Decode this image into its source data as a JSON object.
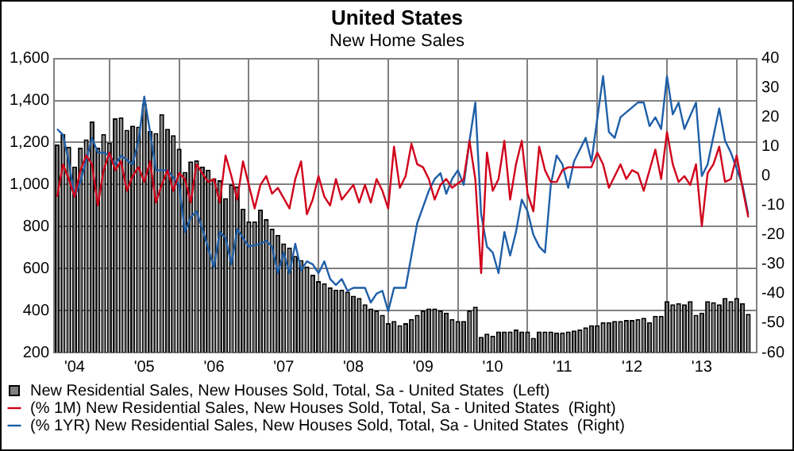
{
  "chart_data": {
    "type": "bar",
    "title": "United States",
    "subtitle": "New Home Sales",
    "x": [
      "2004-04",
      "2004-05",
      "2004-06",
      "2004-07",
      "2004-08",
      "2004-09",
      "2004-10",
      "2004-11",
      "2004-12",
      "2005-01",
      "2005-02",
      "2005-03",
      "2005-04",
      "2005-05",
      "2005-06",
      "2005-07",
      "2005-08",
      "2005-09",
      "2005-10",
      "2005-11",
      "2005-12",
      "2006-01",
      "2006-02",
      "2006-03",
      "2006-04",
      "2006-05",
      "2006-06",
      "2006-07",
      "2006-08",
      "2006-09",
      "2006-10",
      "2006-11",
      "2006-12",
      "2007-01",
      "2007-02",
      "2007-03",
      "2007-04",
      "2007-05",
      "2007-06",
      "2007-07",
      "2007-08",
      "2007-09",
      "2007-10",
      "2007-11",
      "2007-12",
      "2008-01",
      "2008-02",
      "2008-03",
      "2008-04",
      "2008-05",
      "2008-06",
      "2008-07",
      "2008-08",
      "2008-09",
      "2008-10",
      "2008-11",
      "2008-12",
      "2009-01",
      "2009-02",
      "2009-03",
      "2009-04",
      "2009-05",
      "2009-06",
      "2009-07",
      "2009-08",
      "2009-09",
      "2009-10",
      "2009-11",
      "2009-12",
      "2010-01",
      "2010-02",
      "2010-03",
      "2010-04",
      "2010-05",
      "2010-06",
      "2010-07",
      "2010-08",
      "2010-09",
      "2010-10",
      "2010-11",
      "2010-12",
      "2011-01",
      "2011-02",
      "2011-03",
      "2011-04",
      "2011-05",
      "2011-06",
      "2011-07",
      "2011-08",
      "2011-09",
      "2011-10",
      "2011-11",
      "2011-12",
      "2012-01",
      "2012-02",
      "2012-03",
      "2012-04",
      "2012-05",
      "2012-06",
      "2012-07",
      "2012-08",
      "2012-09",
      "2012-10",
      "2012-11",
      "2012-12",
      "2013-01",
      "2013-02",
      "2013-03",
      "2013-04",
      "2013-05",
      "2013-06",
      "2013-07",
      "2013-08",
      "2013-09",
      "2013-10",
      "2013-11",
      "2013-12",
      "2014-01",
      "2014-02",
      "2014-03"
    ],
    "series": [
      {
        "name": "New Residential Sales, New Houses Sold, Total, Sa - United States  (Left)",
        "color": "#808080",
        "values": [
          1190,
          1240,
          1180,
          1085,
          1175,
          1215,
          1300,
          1175,
          1240,
          1200,
          1315,
          1320,
          1260,
          1280,
          1275,
          1385,
          1255,
          1245,
          1335,
          1265,
          1235,
          1170,
          1060,
          1110,
          1115,
          1085,
          1070,
          1030,
          1020,
          935,
          1000,
          990,
          885,
          825,
          825,
          880,
          835,
          790,
          760,
          720,
          700,
          660,
          640,
          610,
          570,
          540,
          530,
          510,
          500,
          500,
          490,
          470,
          460,
          430,
          410,
          400,
          380,
          340,
          350,
          330,
          340,
          360,
          380,
          400,
          410,
          410,
          400,
          390,
          360,
          350,
          350,
          400,
          418,
          275,
          290,
          280,
          300,
          300,
          300,
          310,
          300,
          300,
          270,
          300,
          300,
          300,
          295,
          295,
          300,
          305,
          310,
          320,
          330,
          330,
          345,
          345,
          350,
          350,
          355,
          355,
          360,
          365,
          345,
          375,
          375,
          445,
          430,
          435,
          430,
          445,
          380,
          390,
          445,
          440,
          430,
          460,
          445,
          460,
          435,
          384
        ]
      },
      {
        "name": "(% 1M) New Residential Sales, New Houses Sold, Total, Sa - United States  (Right)",
        "type": "line",
        "axis": "y2",
        "color": "#d0021b",
        "x": [
          "2004-04",
          "2004-05",
          "2004-06",
          "2004-07",
          "2004-08",
          "2004-09",
          "2004-10",
          "2004-11",
          "2004-12",
          "2005-01",
          "2005-02",
          "2005-03",
          "2005-04",
          "2005-05",
          "2005-06",
          "2005-07",
          "2005-08",
          "2005-09",
          "2005-10",
          "2005-11",
          "2005-12",
          "2006-01",
          "2006-02",
          "2006-03",
          "2006-04",
          "2006-05",
          "2006-06",
          "2006-07",
          "2006-08",
          "2006-09",
          "2006-10",
          "2006-11",
          "2006-12",
          "2007-01",
          "2007-02",
          "2007-03",
          "2007-04",
          "2007-05",
          "2007-06",
          "2007-08",
          "2007-09",
          "2007-10",
          "2007-11",
          "2007-12",
          "2008-01",
          "2008-02",
          "2008-03",
          "2008-04",
          "2008-05",
          "2008-07",
          "2008-08",
          "2008-09",
          "2008-10",
          "2008-11",
          "2008-12",
          "2009-01",
          "2009-02",
          "2009-03",
          "2009-04",
          "2009-05",
          "2009-06",
          "2009-07",
          "2009-08",
          "2009-09",
          "2009-10",
          "2009-11",
          "2009-12",
          "2010-02",
          "2010-03",
          "2010-04",
          "2010-05",
          "2010-06",
          "2010-07",
          "2010-08",
          "2010-09",
          "2010-10",
          "2010-11",
          "2010-12",
          "2011-01",
          "2011-02",
          "2011-03",
          "2011-04",
          "2011-05",
          "2011-06",
          "2011-07",
          "2011-08",
          "2011-10",
          "2011-12",
          "2012-01",
          "2012-02",
          "2012-03",
          "2012-05",
          "2012-06",
          "2012-07",
          "2012-08",
          "2012-09",
          "2012-11",
          "2012-12",
          "2013-01",
          "2013-02",
          "2013-03",
          "2013-04",
          "2013-05",
          "2013-06",
          "2013-07",
          "2013-08",
          "2013-09",
          "2013-10",
          "2013-11",
          "2013-12",
          "2014-01",
          "2014-02",
          "2014-03"
        ],
        "values": [
          -7,
          4,
          -1,
          -7,
          2,
          7,
          4,
          -10,
          2,
          8,
          2,
          5,
          -5,
          0,
          3,
          -2,
          5,
          -9,
          -3,
          2,
          -5,
          1,
          -1,
          -9,
          4,
          1,
          -2,
          -1,
          -9,
          7,
          0,
          -8,
          5,
          -3,
          -11,
          -3,
          0,
          -6,
          -4,
          -11,
          -1,
          5,
          -13,
          -8,
          0,
          -7,
          -10,
          -1,
          -8,
          -3,
          -9,
          -3,
          -9,
          -1,
          -5,
          -11,
          10,
          -4,
          0,
          11,
          4,
          3,
          -1,
          -8,
          -3,
          -1,
          -4,
          -1,
          12,
          -1,
          -33,
          8,
          -5,
          -1,
          12,
          -8,
          4,
          12,
          -6,
          -12,
          10,
          2,
          -2,
          -2,
          2,
          3,
          3,
          3,
          8,
          4,
          -4,
          4,
          -1,
          2,
          1,
          -5,
          9,
          -1,
          15,
          4,
          -2,
          0,
          -3,
          4,
          -17,
          1,
          4,
          10,
          -2,
          -1,
          7,
          -4,
          -14
        ]
      },
      {
        "name": "(% 1YR) New Residential Sales, New Houses Sold, Total, Sa - United States  (Right)",
        "type": "line",
        "axis": "y2",
        "color": "#1f5fa8",
        "x": [
          "2004-04",
          "2004-05",
          "2004-06",
          "2004-07",
          "2004-08",
          "2004-10",
          "2004-11",
          "2004-12",
          "2005-01",
          "2005-02",
          "2005-03",
          "2005-05",
          "2005-06",
          "2005-07",
          "2005-08",
          "2005-09",
          "2005-11",
          "2006-01",
          "2006-02",
          "2006-03",
          "2006-04",
          "2006-05",
          "2006-07",
          "2006-08",
          "2006-09",
          "2006-10",
          "2006-11",
          "2007-01",
          "2007-03",
          "2007-04",
          "2007-05",
          "2007-06",
          "2007-07",
          "2007-08",
          "2007-09",
          "2007-10",
          "2007-11",
          "2007-12",
          "2008-01",
          "2008-02",
          "2008-03",
          "2008-04",
          "2008-05",
          "2008-06",
          "2008-07",
          "2008-08",
          "2008-09",
          "2008-10",
          "2008-11",
          "2008-12",
          "2009-01",
          "2009-02",
          "2009-04",
          "2009-05",
          "2009-06",
          "2009-08",
          "2009-09",
          "2009-10",
          "2009-11",
          "2009-12",
          "2010-01",
          "2010-02",
          "2010-03",
          "2010-04",
          "2010-05",
          "2010-06",
          "2010-07",
          "2010-08",
          "2010-09",
          "2010-10",
          "2010-11",
          "2010-12",
          "2011-01",
          "2011-02",
          "2011-03",
          "2011-04",
          "2011-05",
          "2011-06",
          "2011-07",
          "2011-08",
          "2011-09",
          "2011-11",
          "2011-12",
          "2012-02",
          "2012-03",
          "2012-04",
          "2012-05",
          "2012-08",
          "2012-09",
          "2012-10",
          "2012-11",
          "2012-12",
          "2013-01",
          "2013-02",
          "2013-03",
          "2013-04",
          "2013-06",
          "2013-07",
          "2013-08",
          "2013-10",
          "2013-11",
          "2013-12",
          "2014-02",
          "2014-03"
        ],
        "values": [
          16,
          14,
          5,
          -7,
          -2,
          13,
          8,
          8,
          7,
          4,
          7,
          4,
          12,
          27,
          15,
          2,
          2,
          -3,
          -19,
          -14,
          -12,
          -18,
          -31,
          -19,
          -21,
          -30,
          -18,
          -24,
          -23,
          -22,
          -24,
          -33,
          -26,
          -33,
          -23,
          -32,
          -29,
          -30,
          -33,
          -29,
          -35,
          -37,
          -35,
          -39,
          -38,
          -38,
          -38,
          -43,
          -40,
          -39,
          -46,
          -38,
          -38,
          -27,
          -16,
          -5,
          -1,
          1,
          -6,
          -1,
          2,
          -3,
          12,
          25,
          -13,
          -24,
          -26,
          -33,
          -19,
          -27,
          -19,
          -8,
          -12,
          -20,
          -24,
          -26,
          -3,
          7,
          4,
          -4,
          5,
          13,
          5,
          34,
          15,
          13,
          20,
          25,
          25,
          17,
          20,
          16,
          34,
          21,
          25,
          16,
          25,
          0,
          4,
          23,
          12,
          8,
          -3,
          -13
        ]
      }
    ],
    "xlim": [
      "2004-03-15",
      "2014-04-15"
    ],
    "xticks": [
      {
        "value": "2004-07",
        "label": "'04"
      },
      {
        "value": "2005-01",
        "label": null
      },
      {
        "value": "2005-07",
        "label": "'05"
      },
      {
        "value": "2006-01",
        "label": null
      },
      {
        "value": "2006-07",
        "label": "'06"
      },
      {
        "value": "2007-01",
        "label": null
      },
      {
        "value": "2007-07",
        "label": "'07"
      },
      {
        "value": "2008-01",
        "label": null
      },
      {
        "value": "2008-07",
        "label": "'08"
      },
      {
        "value": "2009-01",
        "label": null
      },
      {
        "value": "2009-07",
        "label": "'09"
      },
      {
        "value": "2010-01",
        "label": null
      },
      {
        "value": "2010-07",
        "label": "'10"
      },
      {
        "value": "2011-01",
        "label": null
      },
      {
        "value": "2011-07",
        "label": "'11"
      },
      {
        "value": "2012-01",
        "label": null
      },
      {
        "value": "2012-07",
        "label": "'12"
      },
      {
        "value": "2013-01",
        "label": null
      },
      {
        "value": "2013-07",
        "label": "'13"
      },
      {
        "value": "2014-01",
        "label": null
      }
    ],
    "ylim": [
      200,
      1600
    ],
    "yticks": [
      200,
      400,
      600,
      800,
      {
        "value": 1000,
        "label": "1,000"
      },
      {
        "value": 1200,
        "label": "1,200"
      },
      {
        "value": 1400,
        "label": "1,400"
      },
      {
        "value": 1600,
        "label": "1,600"
      }
    ],
    "y2lim": [
      -60,
      40
    ],
    "y2ticks": [
      -60,
      -50,
      -40,
      -30,
      -20,
      -10,
      0,
      10,
      20,
      30,
      40
    ],
    "grid": true,
    "legend": "bottom",
    "marker": "none",
    "line_style": "solid"
  }
}
